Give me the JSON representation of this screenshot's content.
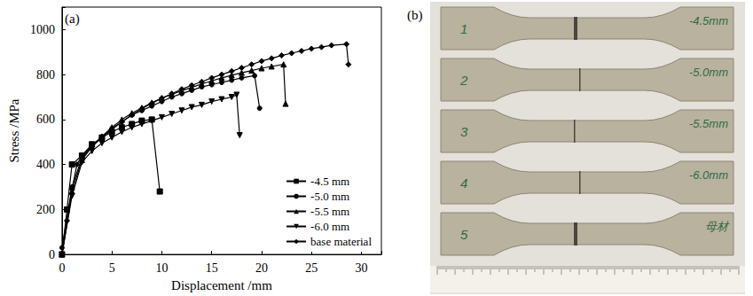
{
  "chart_data": {
    "type": "line",
    "title": "(a)",
    "x_label": "Displacement /mm",
    "y_label": "Stress /MPa",
    "xlim": [
      0,
      32
    ],
    "xticks": [
      0,
      5,
      10,
      15,
      20,
      25,
      30
    ],
    "ylim": [
      0,
      1100
    ],
    "yticks": [
      0,
      200,
      400,
      600,
      800,
      1000
    ],
    "color": "#000000",
    "legend": "lower right",
    "grid": false,
    "series": [
      {
        "name": "-4.5 mm",
        "marker": "square",
        "x": [
          0,
          0.5,
          1,
          2,
          3,
          4,
          5,
          6,
          7,
          8,
          9,
          9.8
        ],
        "values": [
          0,
          200,
          400,
          440,
          490,
          520,
          545,
          565,
          580,
          595,
          600,
          280
        ]
      },
      {
        "name": "-5.0 mm",
        "marker": "circle",
        "x": [
          0,
          1,
          2,
          3,
          4,
          5,
          6,
          7,
          8,
          9,
          10,
          11,
          12,
          13,
          14,
          15,
          16,
          17,
          18,
          19.3,
          19.8
        ],
        "values": [
          30,
          300,
          430,
          480,
          520,
          560,
          590,
          620,
          640,
          660,
          680,
          700,
          715,
          730,
          745,
          755,
          765,
          775,
          785,
          795,
          650
        ]
      },
      {
        "name": "-5.5 mm",
        "marker": "triangle-up",
        "x": [
          0,
          1,
          2,
          3,
          4,
          5,
          6,
          7,
          8,
          9,
          10,
          11,
          12,
          13,
          14,
          15,
          16,
          17,
          18,
          19,
          20,
          21,
          22.2,
          22.4
        ],
        "values": [
          0,
          280,
          420,
          480,
          525,
          565,
          600,
          628,
          652,
          675,
          695,
          712,
          728,
          743,
          758,
          772,
          785,
          797,
          808,
          818,
          828,
          836,
          845,
          670
        ]
      },
      {
        "name": "-6.0 mm",
        "marker": "triangle-down",
        "x": [
          0,
          1,
          2,
          3,
          4,
          5,
          6,
          7,
          8,
          9,
          10,
          11,
          12,
          13,
          14,
          15,
          16,
          17,
          17.5,
          17.8
        ],
        "values": [
          0,
          260,
          410,
          460,
          495,
          520,
          545,
          565,
          580,
          595,
          610,
          625,
          640,
          655,
          665,
          680,
          690,
          700,
          710,
          530
        ]
      },
      {
        "name": "base material",
        "marker": "diamond",
        "x": [
          0,
          0.5,
          1,
          1.5,
          2,
          3,
          4,
          5,
          6,
          7,
          8,
          9,
          10,
          11,
          12,
          13,
          14,
          15,
          16,
          17,
          18,
          19,
          20,
          21,
          22,
          23,
          24,
          25,
          26,
          27,
          28.5,
          28.7
        ],
        "values": [
          0,
          150,
          290,
          400,
          440,
          480,
          520,
          555,
          590,
          620,
          648,
          672,
          695,
          715,
          735,
          752,
          768,
          785,
          800,
          815,
          830,
          845,
          860,
          872,
          885,
          895,
          905,
          915,
          922,
          930,
          935,
          845
        ]
      }
    ]
  },
  "photo": {
    "label": "(b)",
    "specimens": [
      {
        "number": "1",
        "label": "-4.5mm"
      },
      {
        "number": "2",
        "label": "-5.0mm"
      },
      {
        "number": "3",
        "label": "-5.5mm"
      },
      {
        "number": "4",
        "label": "-6.0mm"
      },
      {
        "number": "5",
        "label": "母材"
      }
    ]
  }
}
